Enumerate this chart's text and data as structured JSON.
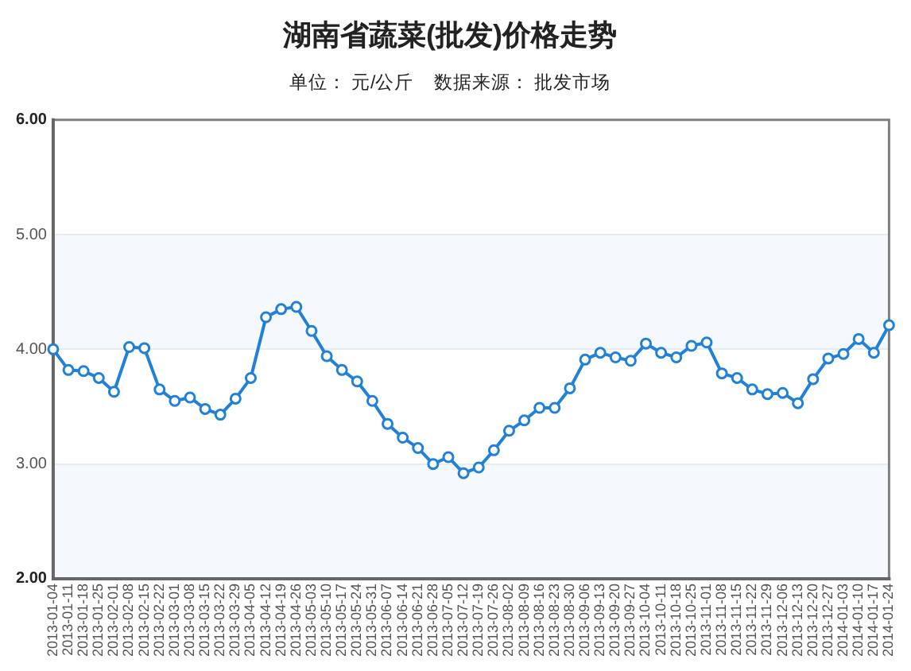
{
  "chart_data": {
    "type": "line",
    "title": "湖南省蔬菜(批发)价格走势",
    "subtitle": "单位： 元/公斤    数据来源： 批发市场",
    "categories": [
      "2013-01-04",
      "2013-01-11",
      "2013-01-18",
      "2013-01-25",
      "2013-02-01",
      "2013-02-08",
      "2013-02-15",
      "2013-02-22",
      "2013-03-01",
      "2013-03-08",
      "2013-03-15",
      "2013-03-22",
      "2013-03-29",
      "2013-04-05",
      "2013-04-12",
      "2013-04-19",
      "2013-04-26",
      "2013-05-03",
      "2013-05-10",
      "2013-05-17",
      "2013-05-24",
      "2013-05-31",
      "2013-06-07",
      "2013-06-14",
      "2013-06-21",
      "2013-06-28",
      "2013-07-05",
      "2013-07-12",
      "2013-07-19",
      "2013-07-26",
      "2013-08-02",
      "2013-08-09",
      "2013-08-16",
      "2013-08-23",
      "2013-08-30",
      "2013-09-06",
      "2013-09-13",
      "2013-09-20",
      "2013-09-27",
      "2013-10-04",
      "2013-10-11",
      "2013-10-18",
      "2013-10-25",
      "2013-11-01",
      "2013-11-08",
      "2013-11-15",
      "2013-11-22",
      "2013-11-29",
      "2013-12-06",
      "2013-12-13",
      "2013-12-20",
      "2013-12-27",
      "2014-01-03",
      "2014-01-10",
      "2014-01-17",
      "2014-01-24"
    ],
    "series": [
      {
        "color": "#2180d8",
        "values": [
          4.0,
          3.82,
          3.81,
          3.75,
          3.63,
          4.02,
          4.01,
          3.65,
          3.55,
          3.58,
          3.48,
          3.43,
          3.57,
          3.75,
          4.28,
          4.35,
          4.37,
          4.16,
          3.94,
          3.82,
          3.72,
          3.55,
          3.35,
          3.23,
          3.14,
          3.0,
          3.06,
          2.92,
          2.97,
          3.12,
          3.29,
          3.38,
          3.49,
          3.49,
          3.66,
          3.91,
          3.97,
          3.93,
          3.9,
          4.05,
          3.97,
          3.93,
          4.03,
          4.06,
          3.79,
          3.75,
          3.65,
          3.61,
          3.62,
          3.53,
          3.74,
          3.92,
          3.96,
          4.09,
          3.97,
          4.21
        ]
      }
    ],
    "ylim": [
      2,
      6
    ],
    "yticks": [
      {
        "value": 2,
        "label": "2.00"
      },
      {
        "value": 3,
        "label": "3.00"
      },
      {
        "value": 4,
        "label": "4.00"
      },
      {
        "value": 5,
        "label": "5.00"
      },
      {
        "value": 6,
        "label": "6.00"
      }
    ],
    "grid": "y",
    "marker": "circle",
    "bands": [
      {
        "axis": "y",
        "from": 2,
        "to": 3,
        "color": "#f5f8fc"
      },
      {
        "axis": "y",
        "from": 4,
        "to": 5,
        "color": "#f5f8fc"
      }
    ]
  }
}
